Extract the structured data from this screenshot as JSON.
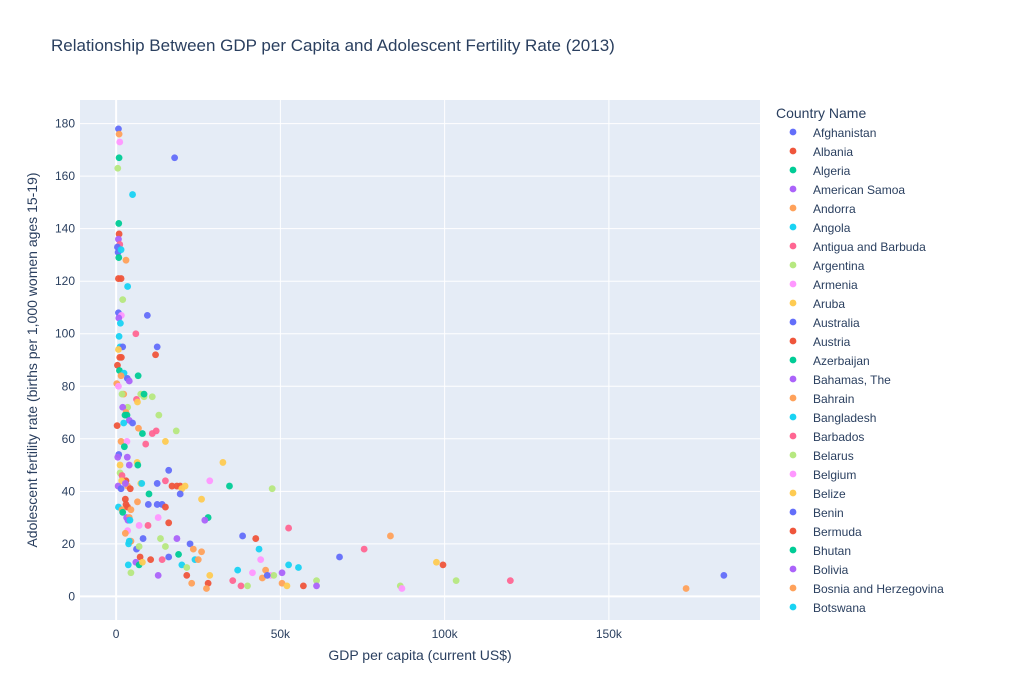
{
  "chart_data": {
    "type": "scatter",
    "title": "Relationship Between GDP per Capita and Adolescent Fertility Rate (2013)",
    "xlabel": "GDP per capita (current US$)",
    "ylabel": "Adolescent fertility rate (births per 1,000 women ages 15-19)",
    "xlim": [
      -11000,
      196000
    ],
    "ylim": [
      -9,
      189
    ],
    "x_ticks": [
      0,
      50000,
      100000,
      150000
    ],
    "x_tick_labels": [
      "0",
      "50k",
      "100k",
      "150k"
    ],
    "y_ticks": [
      0,
      20,
      40,
      60,
      80,
      100,
      120,
      140,
      160,
      180
    ],
    "y_tick_labels": [
      "0",
      "20",
      "40",
      "60",
      "80",
      "100",
      "120",
      "140",
      "160",
      "180"
    ],
    "grid": true,
    "legend_position": "right",
    "legend": {
      "title": "Country Name",
      "entries": [
        {
          "name": "Afghanistan",
          "color": "#636efa"
        },
        {
          "name": "Albania",
          "color": "#EF553B"
        },
        {
          "name": "Algeria",
          "color": "#00cc96"
        },
        {
          "name": "American Samoa",
          "color": "#ab63fa"
        },
        {
          "name": "Andorra",
          "color": "#FFA15A"
        },
        {
          "name": "Angola",
          "color": "#19d3f3"
        },
        {
          "name": "Antigua and Barbuda",
          "color": "#FF6692"
        },
        {
          "name": "Argentina",
          "color": "#B6E880"
        },
        {
          "name": "Armenia",
          "color": "#FF97FF"
        },
        {
          "name": "Aruba",
          "color": "#FECB52"
        },
        {
          "name": "Australia",
          "color": "#636efa"
        },
        {
          "name": "Austria",
          "color": "#EF553B"
        },
        {
          "name": "Azerbaijan",
          "color": "#00cc96"
        },
        {
          "name": "Bahamas, The",
          "color": "#ab63fa"
        },
        {
          "name": "Bahrain",
          "color": "#FFA15A"
        },
        {
          "name": "Bangladesh",
          "color": "#19d3f3"
        },
        {
          "name": "Barbados",
          "color": "#FF6692"
        },
        {
          "name": "Belarus",
          "color": "#B6E880"
        },
        {
          "name": "Belgium",
          "color": "#FF97FF"
        },
        {
          "name": "Belize",
          "color": "#FECB52"
        },
        {
          "name": "Benin",
          "color": "#636efa"
        },
        {
          "name": "Bermuda",
          "color": "#EF553B"
        },
        {
          "name": "Bhutan",
          "color": "#00cc96"
        },
        {
          "name": "Bolivia",
          "color": "#ab63fa"
        },
        {
          "name": "Bosnia and Herzegovina",
          "color": "#FFA15A"
        },
        {
          "name": "Botswana",
          "color": "#19d3f3"
        }
      ]
    },
    "colors": [
      "#636efa",
      "#EF553B",
      "#00cc96",
      "#ab63fa",
      "#FFA15A",
      "#19d3f3",
      "#FF6692",
      "#B6E880",
      "#FF97FF",
      "#FECB52"
    ],
    "points": [
      [
        700,
        178,
        0
      ],
      [
        900,
        176,
        4
      ],
      [
        1100,
        173,
        8
      ],
      [
        500,
        163,
        7
      ],
      [
        900,
        167,
        2
      ],
      [
        17800,
        167,
        0
      ],
      [
        5000,
        153,
        5
      ],
      [
        800,
        142,
        2
      ],
      [
        900,
        138,
        1
      ],
      [
        700,
        136,
        3
      ],
      [
        1100,
        134,
        6
      ],
      [
        400,
        133,
        0
      ],
      [
        600,
        131,
        0
      ],
      [
        800,
        129,
        2
      ],
      [
        1500,
        132,
        5
      ],
      [
        3000,
        128,
        4
      ],
      [
        700,
        121,
        1
      ],
      [
        1500,
        121,
        1
      ],
      [
        3500,
        118,
        5
      ],
      [
        2000,
        113,
        7
      ],
      [
        700,
        108,
        0
      ],
      [
        1600,
        107,
        8
      ],
      [
        9500,
        107,
        0
      ],
      [
        800,
        106,
        3
      ],
      [
        1300,
        104,
        5
      ],
      [
        6000,
        100,
        6
      ],
      [
        900,
        99,
        5
      ],
      [
        1200,
        95,
        5
      ],
      [
        2000,
        95,
        0
      ],
      [
        12500,
        95,
        0
      ],
      [
        700,
        94,
        9
      ],
      [
        12000,
        92,
        1
      ],
      [
        1100,
        91,
        1
      ],
      [
        1600,
        91,
        1
      ],
      [
        400,
        88,
        1
      ],
      [
        1000,
        86,
        2
      ],
      [
        2400,
        85,
        5
      ],
      [
        1500,
        84,
        4
      ],
      [
        3400,
        83,
        0
      ],
      [
        6700,
        84,
        2
      ],
      [
        200,
        81,
        4
      ],
      [
        700,
        80,
        8
      ],
      [
        4000,
        82,
        3
      ],
      [
        2300,
        77,
        4
      ],
      [
        1800,
        77,
        7
      ],
      [
        7500,
        77,
        7
      ],
      [
        8500,
        76,
        7
      ],
      [
        8500,
        77,
        2
      ],
      [
        11000,
        76,
        7
      ],
      [
        6200,
        75,
        6
      ],
      [
        6500,
        74,
        9
      ],
      [
        3500,
        72,
        7
      ],
      [
        2000,
        72,
        3
      ],
      [
        3000,
        70,
        4
      ],
      [
        3300,
        69,
        2
      ],
      [
        2700,
        69,
        2
      ],
      [
        13000,
        69,
        7
      ],
      [
        4000,
        67,
        3
      ],
      [
        5000,
        66,
        0
      ],
      [
        300,
        65,
        1
      ],
      [
        2300,
        66,
        5
      ],
      [
        6800,
        64,
        4
      ],
      [
        8000,
        62,
        2
      ],
      [
        11000,
        62,
        6
      ],
      [
        12200,
        63,
        6
      ],
      [
        18300,
        63,
        7
      ],
      [
        9000,
        58,
        6
      ],
      [
        1500,
        59,
        4
      ],
      [
        3300,
        59,
        8
      ],
      [
        15000,
        59,
        9
      ],
      [
        2500,
        57,
        2
      ],
      [
        800,
        54,
        0
      ],
      [
        500,
        53,
        3
      ],
      [
        3400,
        53,
        3
      ],
      [
        4000,
        50,
        3
      ],
      [
        1200,
        50,
        9
      ],
      [
        6400,
        51,
        9
      ],
      [
        6600,
        50,
        2
      ],
      [
        16000,
        48,
        0
      ],
      [
        32500,
        51,
        9
      ],
      [
        1200,
        47,
        7
      ],
      [
        1800,
        46,
        6
      ],
      [
        28500,
        44,
        8
      ],
      [
        15000,
        44,
        6
      ],
      [
        12500,
        43,
        0
      ],
      [
        7500,
        43,
        9
      ],
      [
        7800,
        43,
        5
      ],
      [
        3000,
        44,
        1
      ],
      [
        3500,
        42,
        4
      ],
      [
        1700,
        44,
        9
      ],
      [
        600,
        42,
        3
      ],
      [
        1500,
        41,
        0
      ],
      [
        2800,
        43,
        3
      ],
      [
        4300,
        41,
        1
      ],
      [
        17000,
        42,
        1
      ],
      [
        18500,
        42,
        1
      ],
      [
        19500,
        42,
        1
      ],
      [
        20000,
        41,
        9
      ],
      [
        21000,
        42,
        9
      ],
      [
        34500,
        42,
        2
      ],
      [
        47500,
        41,
        7
      ],
      [
        19500,
        39,
        0
      ],
      [
        10000,
        39,
        2
      ],
      [
        2800,
        37,
        1
      ],
      [
        6500,
        36,
        4
      ],
      [
        26000,
        37,
        9
      ],
      [
        3000,
        35,
        1
      ],
      [
        9800,
        35,
        0
      ],
      [
        12500,
        35,
        0
      ],
      [
        14000,
        35,
        0
      ],
      [
        15000,
        34,
        1
      ],
      [
        700,
        34,
        5
      ],
      [
        1800,
        33,
        4
      ],
      [
        3500,
        34,
        1
      ],
      [
        4500,
        33,
        4
      ],
      [
        2000,
        32,
        2
      ],
      [
        3200,
        30,
        3
      ],
      [
        4000,
        30,
        4
      ],
      [
        3600,
        29,
        3
      ],
      [
        4200,
        29,
        5
      ],
      [
        12800,
        30,
        8
      ],
      [
        16000,
        28,
        1
      ],
      [
        28000,
        30,
        2
      ],
      [
        27000,
        29,
        3
      ],
      [
        9700,
        27,
        6
      ],
      [
        7000,
        27,
        8
      ],
      [
        3500,
        25,
        8
      ],
      [
        2800,
        24,
        4
      ],
      [
        52500,
        26,
        6
      ],
      [
        83500,
        23,
        4
      ],
      [
        38500,
        23,
        0
      ],
      [
        42500,
        22,
        1
      ],
      [
        8200,
        22,
        0
      ],
      [
        13500,
        22,
        7
      ],
      [
        18500,
        22,
        3
      ],
      [
        15000,
        19,
        7
      ],
      [
        3800,
        20,
        5
      ],
      [
        4500,
        21,
        4
      ],
      [
        4000,
        21,
        5
      ],
      [
        22500,
        20,
        0
      ],
      [
        6200,
        18,
        0
      ],
      [
        7000,
        19,
        7
      ],
      [
        23500,
        18,
        4
      ],
      [
        43500,
        18,
        5
      ],
      [
        75500,
        18,
        6
      ],
      [
        26000,
        17,
        4
      ],
      [
        19000,
        16,
        2
      ],
      [
        7300,
        15,
        1
      ],
      [
        16000,
        15,
        0
      ],
      [
        68000,
        15,
        0
      ],
      [
        44000,
        14,
        8
      ],
      [
        10500,
        14,
        1
      ],
      [
        14000,
        14,
        6
      ],
      [
        24000,
        14,
        5
      ],
      [
        25000,
        14,
        4
      ],
      [
        3700,
        12,
        5
      ],
      [
        6000,
        13,
        3
      ],
      [
        7000,
        12,
        2
      ],
      [
        8000,
        13,
        9
      ],
      [
        20000,
        12,
        5
      ],
      [
        21500,
        11,
        7
      ],
      [
        37000,
        10,
        5
      ],
      [
        45500,
        10,
        4
      ],
      [
        50500,
        9,
        3
      ],
      [
        52500,
        12,
        5
      ],
      [
        55500,
        11,
        5
      ],
      [
        97500,
        13,
        9
      ],
      [
        99500,
        12,
        1
      ],
      [
        4500,
        9,
        7
      ],
      [
        12800,
        8,
        3
      ],
      [
        21500,
        8,
        1
      ],
      [
        28500,
        8,
        9
      ],
      [
        41500,
        9,
        8
      ],
      [
        47000,
        8,
        8
      ],
      [
        48000,
        8,
        7
      ],
      [
        44500,
        7,
        4
      ],
      [
        46000,
        8,
        0
      ],
      [
        185000,
        8,
        0
      ],
      [
        35500,
        6,
        6
      ],
      [
        61000,
        6,
        7
      ],
      [
        103500,
        6,
        7
      ],
      [
        120000,
        6,
        6
      ],
      [
        23000,
        5,
        4
      ],
      [
        28000,
        5,
        1
      ],
      [
        50500,
        5,
        4
      ],
      [
        52000,
        4,
        9
      ],
      [
        57000,
        4,
        1
      ],
      [
        61000,
        4,
        3
      ],
      [
        38000,
        4,
        6
      ],
      [
        40000,
        4,
        7
      ],
      [
        86500,
        4,
        7
      ],
      [
        87000,
        3,
        8
      ],
      [
        27500,
        3,
        4
      ],
      [
        173500,
        3,
        4
      ]
    ]
  }
}
